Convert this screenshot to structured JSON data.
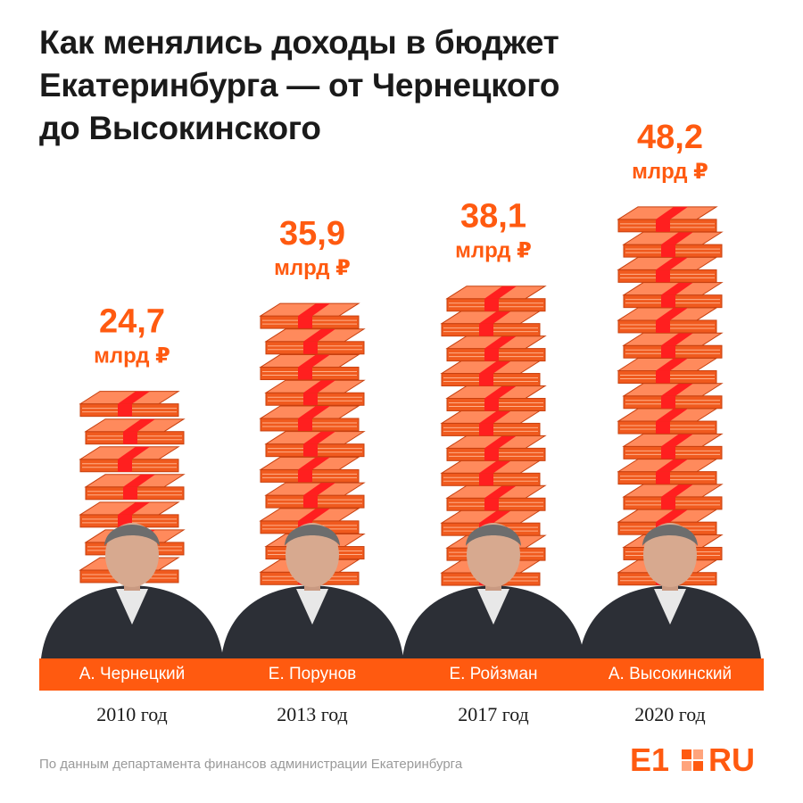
{
  "title": {
    "line1": "Как менялись доходы в бюджет",
    "line2": "Екатеринбурга — от Чернецкого",
    "line3": "до Высокинского"
  },
  "chart_data": {
    "type": "bar",
    "title": "Как менялись доходы в бюджет Екатеринбурга — от Чернецкого до Высокинского",
    "categories": [
      "2010 год",
      "2013 год",
      "2017 год",
      "2020 год"
    ],
    "names": [
      "А. Чернецкий",
      "Е. Порунов",
      "Е. Ройзман",
      "А. Высокинский"
    ],
    "values": [
      24.7,
      35.9,
      38.1,
      48.2
    ],
    "value_labels": [
      "24,7",
      "35,9",
      "38,1",
      "48,2"
    ],
    "unit": "млрд ₽"
  },
  "source": "По данным департамента финансов администрации Екатеринбурга",
  "logo": {
    "main": "E1",
    "suffix": "RU"
  },
  "colors": {
    "accent": "#ff5a10",
    "band": "#ff1f1f",
    "bundle_top": "#ff8a5c",
    "bundle_face": "#f05a1e",
    "bundle_edge": "#c7400f",
    "bundle_line": "#ffb08a"
  }
}
